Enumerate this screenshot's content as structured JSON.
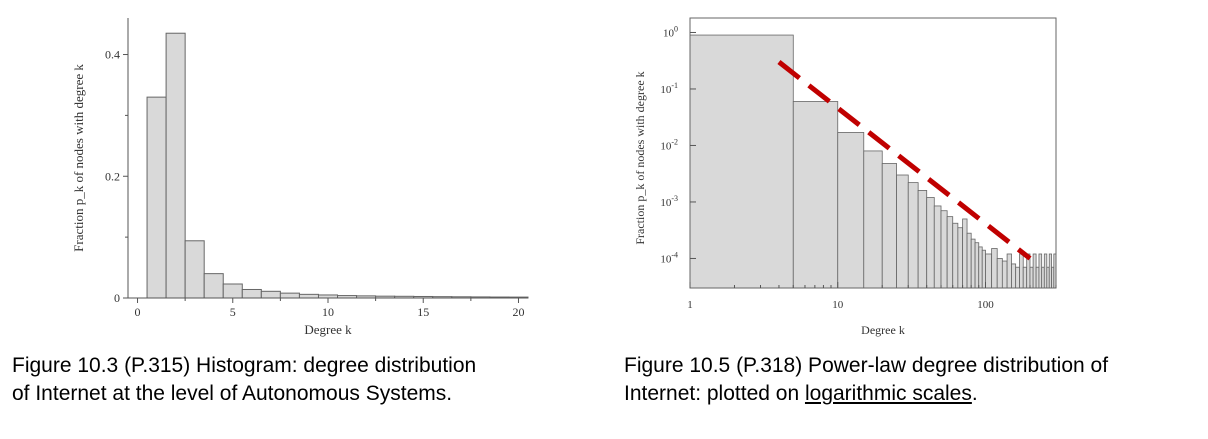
{
  "chart_data": [
    {
      "type": "bar",
      "title": "",
      "xlabel": "Degree k",
      "ylabel": "Fraction p_k of nodes with degree k",
      "x_ticks": [
        "0",
        "5",
        "10",
        "15",
        "20"
      ],
      "y_ticks": [
        "0",
        "0.2",
        "0.4"
      ],
      "xlim": [
        -0.5,
        20.5
      ],
      "ylim": [
        0,
        0.46
      ],
      "bins": [
        {
          "k": 1,
          "value": 0.33
        },
        {
          "k": 2,
          "value": 0.435
        },
        {
          "k": 3,
          "value": 0.094
        },
        {
          "k": 4,
          "value": 0.04
        },
        {
          "k": 5,
          "value": 0.023
        },
        {
          "k": 6,
          "value": 0.014
        },
        {
          "k": 7,
          "value": 0.011
        },
        {
          "k": 8,
          "value": 0.008
        },
        {
          "k": 9,
          "value": 0.006
        },
        {
          "k": 10,
          "value": 0.005
        },
        {
          "k": 11,
          "value": 0.004
        },
        {
          "k": 12,
          "value": 0.0035
        },
        {
          "k": 13,
          "value": 0.003
        },
        {
          "k": 14,
          "value": 0.0028
        },
        {
          "k": 15,
          "value": 0.0025
        },
        {
          "k": 16,
          "value": 0.0022
        },
        {
          "k": 17,
          "value": 0.002
        },
        {
          "k": 18,
          "value": 0.0018
        },
        {
          "k": 19,
          "value": 0.0016
        },
        {
          "k": 20,
          "value": 0.0015
        }
      ],
      "bar_color": "#d9d9d9",
      "edge_color": "#666666",
      "grid": false
    },
    {
      "type": "bar",
      "scale": "log-log",
      "title": "",
      "xlabel": "Degree k",
      "ylabel": "Fraction p_k of nodes with degree k",
      "x_ticks": [
        {
          "value": 1,
          "label": "1"
        },
        {
          "value": 10,
          "label": "10"
        },
        {
          "value": 100,
          "label": "100"
        }
      ],
      "y_ticks": [
        {
          "value": 1,
          "base": "10",
          "exp": "0"
        },
        {
          "value": 0.1,
          "base": "10",
          "exp": "-1"
        },
        {
          "value": 0.01,
          "base": "10",
          "exp": "-2"
        },
        {
          "value": 0.001,
          "base": "10",
          "exp": "-3"
        },
        {
          "value": 0.0001,
          "base": "10",
          "exp": "-4"
        }
      ],
      "xlim": [
        1,
        300
      ],
      "ylim": [
        3e-05,
        1.2
      ],
      "bins": [
        {
          "x0": 1,
          "x1": 5,
          "value": 0.9
        },
        {
          "x0": 5,
          "x1": 10,
          "value": 0.06
        },
        {
          "x0": 10,
          "x1": 15,
          "value": 0.017
        },
        {
          "x0": 15,
          "x1": 20,
          "value": 0.008
        },
        {
          "x0": 20,
          "x1": 25,
          "value": 0.0048
        },
        {
          "x0": 25,
          "x1": 30,
          "value": 0.003
        },
        {
          "x0": 30,
          "x1": 35,
          "value": 0.0022
        },
        {
          "x0": 35,
          "x1": 40,
          "value": 0.0016
        },
        {
          "x0": 40,
          "x1": 45,
          "value": 0.0012
        },
        {
          "x0": 45,
          "x1": 50,
          "value": 0.00085
        },
        {
          "x0": 50,
          "x1": 55,
          "value": 0.0007
        },
        {
          "x0": 55,
          "x1": 60,
          "value": 0.00055
        },
        {
          "x0": 60,
          "x1": 65,
          "value": 0.00042
        },
        {
          "x0": 65,
          "x1": 70,
          "value": 0.00035
        },
        {
          "x0": 70,
          "x1": 75,
          "value": 0.0005
        },
        {
          "x0": 75,
          "x1": 80,
          "value": 0.00028
        },
        {
          "x0": 80,
          "x1": 85,
          "value": 0.00022
        },
        {
          "x0": 85,
          "x1": 90,
          "value": 0.00019
        },
        {
          "x0": 90,
          "x1": 95,
          "value": 0.00016
        },
        {
          "x0": 95,
          "x1": 100,
          "value": 0.00014
        },
        {
          "x0": 100,
          "x1": 110,
          "value": 0.00012
        },
        {
          "x0": 110,
          "x1": 120,
          "value": 0.00015
        },
        {
          "x0": 120,
          "x1": 130,
          "value": 0.0001
        },
        {
          "x0": 130,
          "x1": 140,
          "value": 9e-05
        },
        {
          "x0": 140,
          "x1": 150,
          "value": 0.00012
        },
        {
          "x0": 150,
          "x1": 160,
          "value": 8e-05
        },
        {
          "x0": 160,
          "x1": 170,
          "value": 7e-05
        },
        {
          "x0": 170,
          "x1": 180,
          "value": 0.00012
        },
        {
          "x0": 180,
          "x1": 190,
          "value": 7e-05
        },
        {
          "x0": 190,
          "x1": 200,
          "value": 0.00012
        },
        {
          "x0": 200,
          "x1": 210,
          "value": 7e-05
        },
        {
          "x0": 210,
          "x1": 220,
          "value": 0.00012
        },
        {
          "x0": 220,
          "x1": 230,
          "value": 7e-05
        },
        {
          "x0": 230,
          "x1": 240,
          "value": 0.00012
        },
        {
          "x0": 240,
          "x1": 250,
          "value": 7e-05
        },
        {
          "x0": 250,
          "x1": 260,
          "value": 0.00012
        },
        {
          "x0": 260,
          "x1": 270,
          "value": 7e-05
        },
        {
          "x0": 270,
          "x1": 280,
          "value": 0.00012
        },
        {
          "x0": 280,
          "x1": 290,
          "value": 7e-05
        },
        {
          "x0": 290,
          "x1": 300,
          "value": 0.00012
        }
      ],
      "trend_line": {
        "x0": 4,
        "y0": 0.3,
        "x1": 200,
        "y1": 0.0001,
        "color": "#c00000",
        "style": "dashed"
      },
      "bar_color": "#d9d9d9",
      "edge_color": "#666666",
      "grid": false
    }
  ],
  "captions": {
    "left_line1": "Figure 10.3 (P.315) Histogram: degree distribution",
    "left_line2": "of Internet at the level of Autonomous Systems.",
    "right_line1": "Figure 10.5 (P.318) Power-law degree distribution of",
    "right_line2_pre": "Internet: plotted on ",
    "right_line2_link": "logarithmic scales",
    "right_line2_post": "."
  }
}
